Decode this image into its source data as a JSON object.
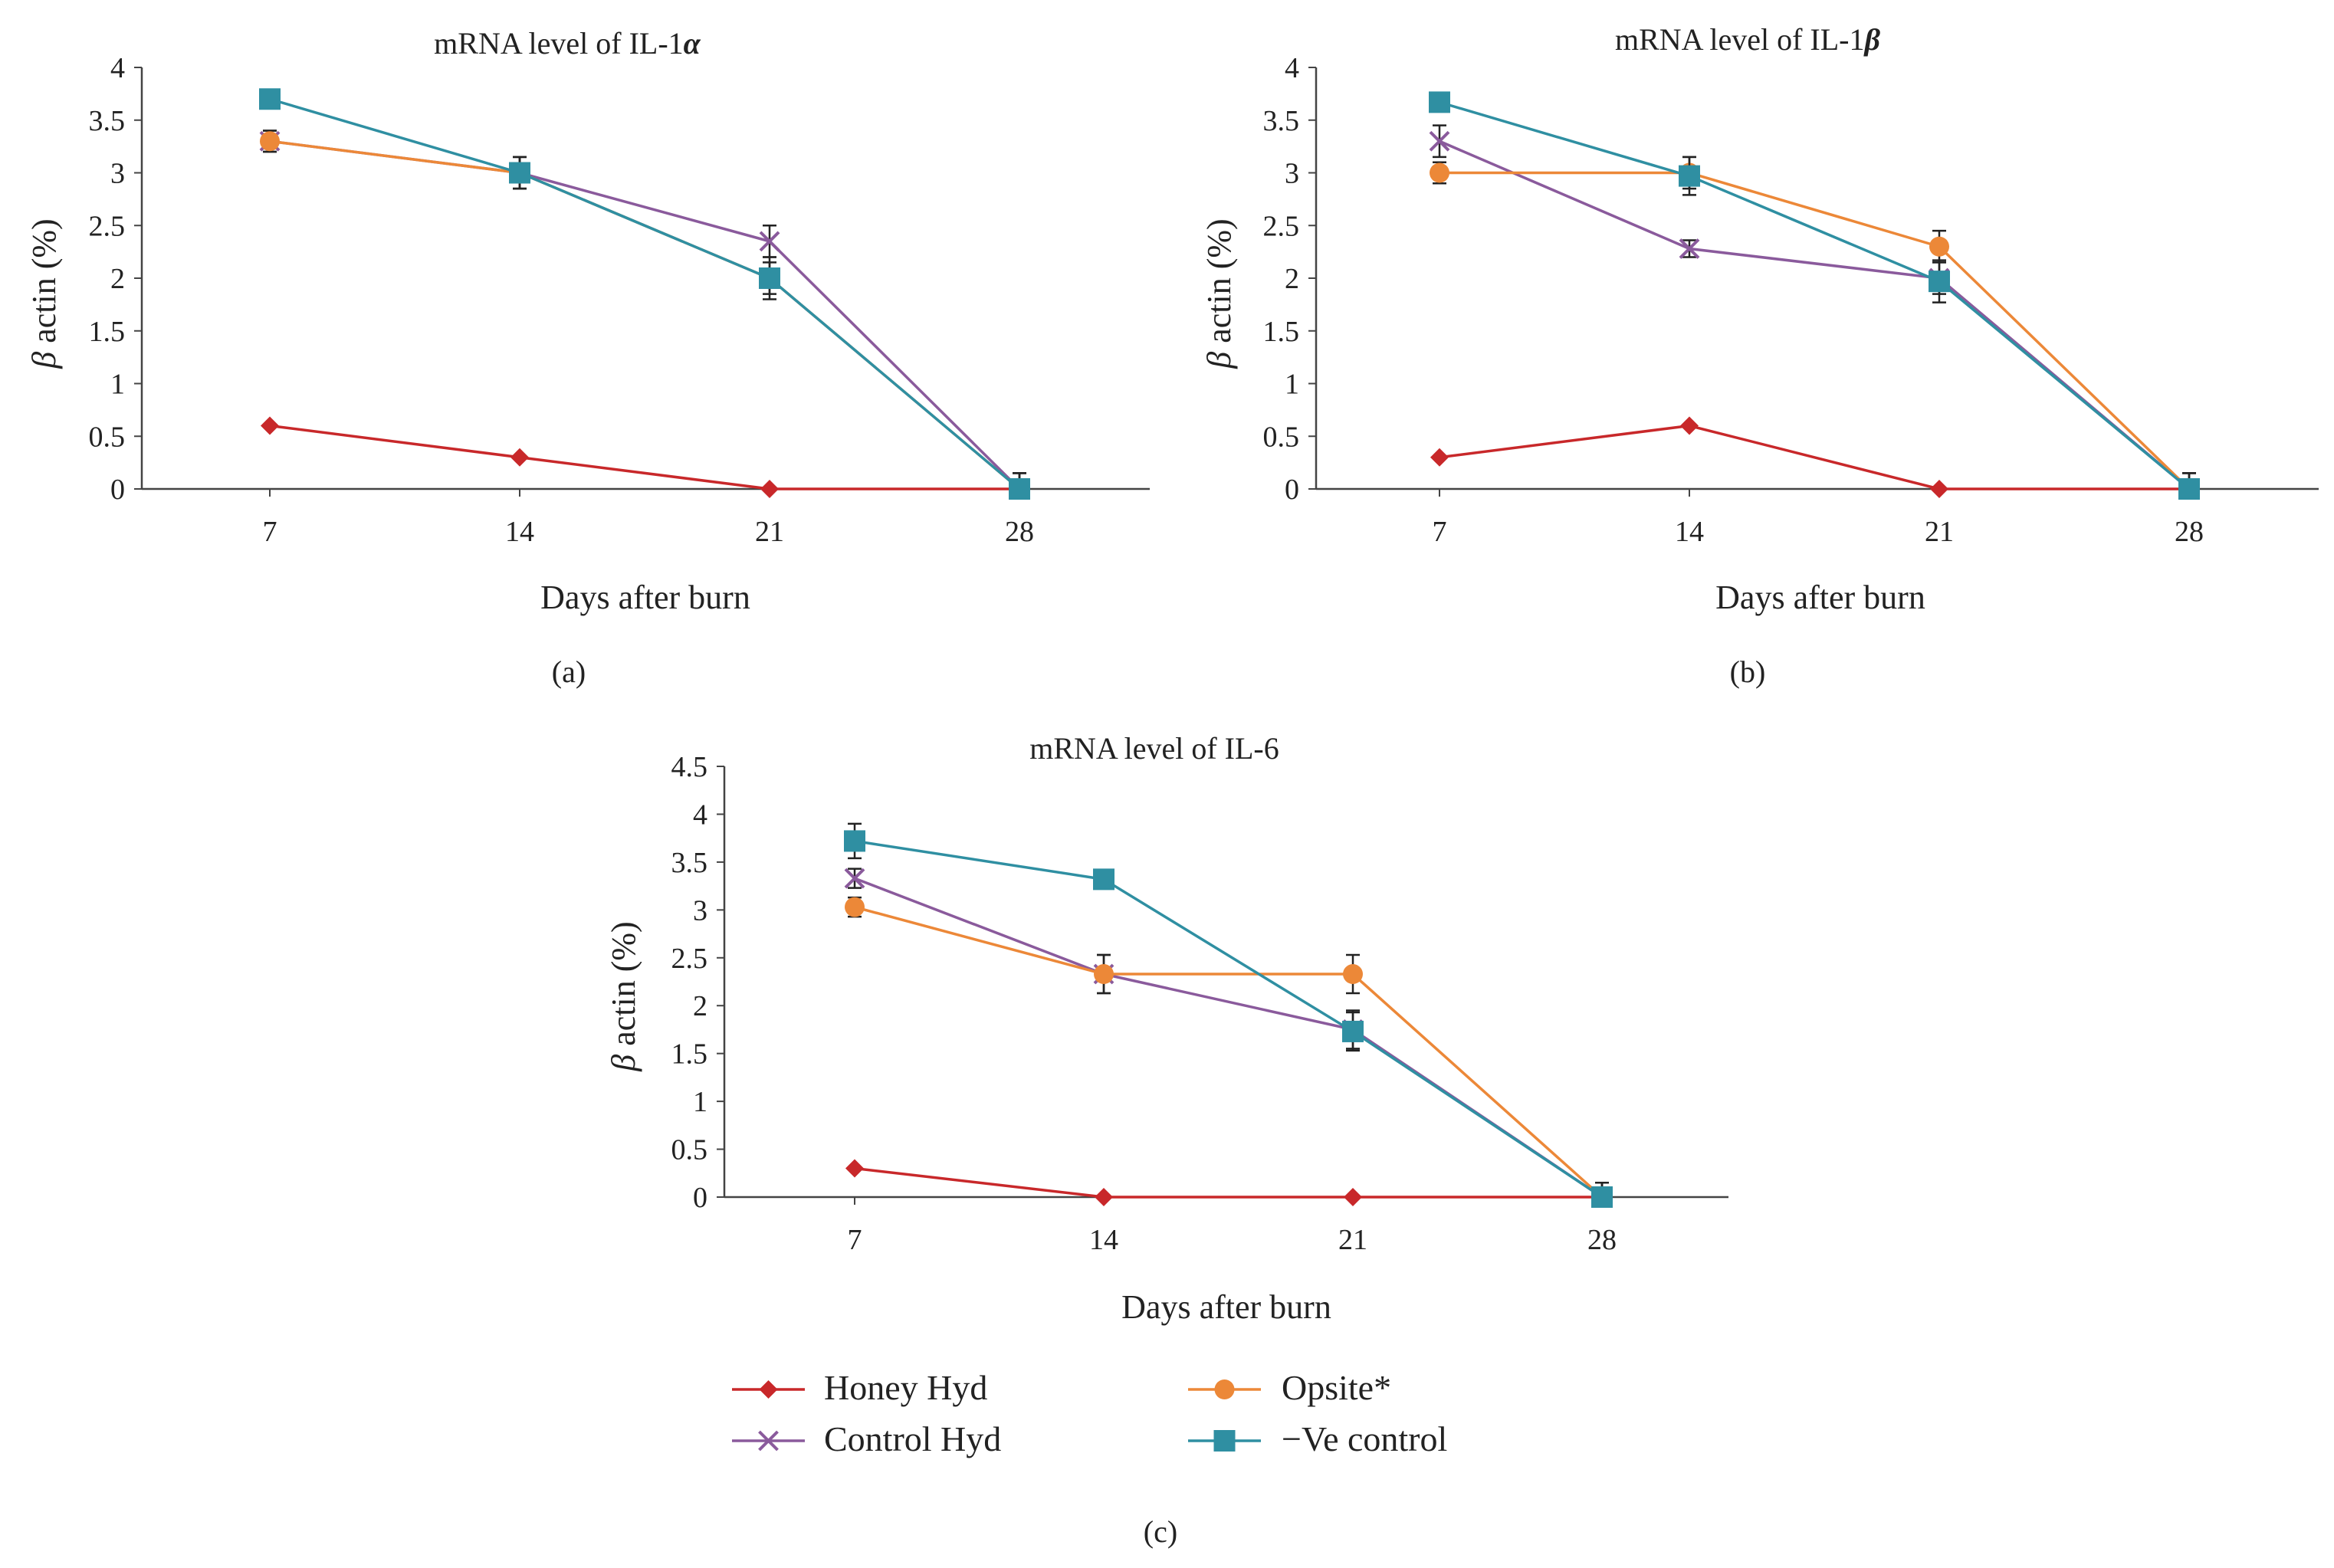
{
  "colors": {
    "honey": "#c8282a",
    "opsite": "#ec8838",
    "control": "#8a5a9c",
    "negative": "#2f8fa2",
    "axis": "#444444"
  },
  "legend": [
    {
      "key": "honey",
      "label": "Honey Hyd",
      "marker": "diamond"
    },
    {
      "key": "opsite",
      "label": "Opsite*",
      "marker": "circle"
    },
    {
      "key": "control",
      "label": "Control Hyd",
      "marker": "x"
    },
    {
      "key": "negative",
      "label": "−Ve control",
      "marker": "square"
    }
  ],
  "chart_data": [
    {
      "type": "line",
      "panel": "(a)",
      "title_prefix": "mRNA level of IL-1",
      "title_symbol": "α",
      "xlabel": "Days after burn",
      "ylabel_symbol": "β",
      "ylabel": " actin (%)",
      "categories": [
        "7",
        "14",
        "21",
        "28"
      ],
      "ylim": [
        0,
        4
      ],
      "yticks": [
        "0",
        "0.5",
        "1",
        "1.5",
        "2",
        "2.5",
        "3",
        "3.5",
        "4"
      ],
      "series": [
        {
          "key": "honey",
          "name": "Honey Hyd",
          "values": [
            0.6,
            0.3,
            0.0,
            0.0
          ],
          "errors": [
            0,
            0,
            0,
            0
          ]
        },
        {
          "key": "control",
          "name": "Control Hyd",
          "values": [
            3.3,
            3.0,
            2.35,
            0.0
          ],
          "errors": [
            0.1,
            0.15,
            0.15,
            0.15
          ]
        },
        {
          "key": "opsite",
          "name": "Opsite*",
          "values": [
            3.3,
            3.0,
            2.0,
            0.0
          ],
          "errors": [
            0.1,
            0.15,
            0.15,
            0.15
          ]
        },
        {
          "key": "negative",
          "name": "−Ve control",
          "values": [
            3.7,
            3.0,
            2.0,
            0.0
          ],
          "errors": [
            0,
            0.15,
            0.2,
            0.15
          ]
        }
      ]
    },
    {
      "type": "line",
      "panel": "(b)",
      "title_prefix": "mRNA level of IL-1",
      "title_symbol": "β",
      "xlabel": "Days after burn",
      "ylabel_symbol": "β",
      "ylabel": " actin (%)",
      "categories": [
        "7",
        "14",
        "21",
        "28"
      ],
      "ylim": [
        0,
        4
      ],
      "yticks": [
        "0",
        "0.5",
        "1",
        "1.5",
        "2",
        "2.5",
        "3",
        "3.5",
        "4"
      ],
      "series": [
        {
          "key": "honey",
          "name": "Honey Hyd",
          "values": [
            0.3,
            0.6,
            0.0,
            0.0
          ],
          "errors": [
            0,
            0,
            0,
            0
          ]
        },
        {
          "key": "control",
          "name": "Control Hyd",
          "values": [
            3.3,
            2.28,
            2.0,
            0.0
          ],
          "errors": [
            0.15,
            0.08,
            0.15,
            0.15
          ]
        },
        {
          "key": "opsite",
          "name": "Opsite*",
          "values": [
            3.0,
            3.0,
            2.3,
            0.0
          ],
          "errors": [
            0.1,
            0.15,
            0.15,
            0.15
          ]
        },
        {
          "key": "negative",
          "name": "−Ve control",
          "values": [
            3.67,
            2.97,
            1.97,
            0.0
          ],
          "errors": [
            0.08,
            0.18,
            0.2,
            0.15
          ]
        }
      ]
    },
    {
      "type": "line",
      "panel": "(c)",
      "title_prefix": "mRNA level of IL-6",
      "title_symbol": "",
      "xlabel": "Days after burn",
      "ylabel_symbol": "β",
      "ylabel": " actin (%)",
      "categories": [
        "7",
        "14",
        "21",
        "28"
      ],
      "ylim": [
        0,
        4.5
      ],
      "yticks": [
        "0",
        "0.5",
        "1",
        "1.5",
        "2",
        "2.5",
        "3",
        "3.5",
        "4",
        "4.5"
      ],
      "series": [
        {
          "key": "honey",
          "name": "Honey Hyd",
          "values": [
            0.3,
            0.0,
            0.0,
            0.0
          ],
          "errors": [
            0,
            0,
            0,
            0
          ]
        },
        {
          "key": "control",
          "name": "Control Hyd",
          "values": [
            3.33,
            2.33,
            1.75,
            0.0
          ],
          "errors": [
            0.1,
            0.2,
            0.2,
            0.15
          ]
        },
        {
          "key": "opsite",
          "name": "Opsite*",
          "values": [
            3.03,
            2.33,
            2.33,
            0.0
          ],
          "errors": [
            0.1,
            0.2,
            0.2,
            0.15
          ]
        },
        {
          "key": "negative",
          "name": "−Ve control",
          "values": [
            3.72,
            3.32,
            1.73,
            0.0
          ],
          "errors": [
            0.18,
            0.08,
            0.2,
            0.15
          ]
        }
      ]
    }
  ]
}
